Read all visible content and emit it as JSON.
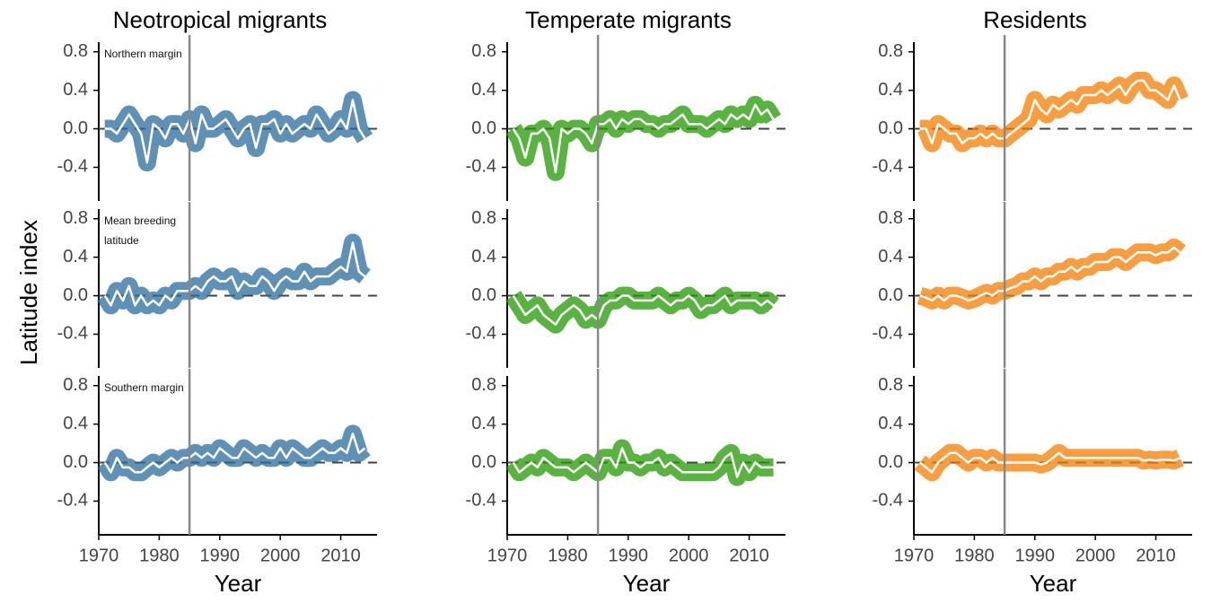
{
  "ylabel": "Latitude index",
  "chart_data": [
    {
      "type": "line",
      "title": "Neotropical migrants",
      "annotation": "Northern margin",
      "x": [
        1971,
        1972,
        1973,
        1974,
        1975,
        1976,
        1977,
        1978,
        1979,
        1980,
        1981,
        1982,
        1983,
        1984,
        1985,
        1986,
        1987,
        1988,
        1989,
        1990,
        1991,
        1992,
        1993,
        1994,
        1995,
        1996,
        1997,
        1998,
        1999,
        2000,
        2001,
        2002,
        2003,
        2004,
        2005,
        2006,
        2007,
        2008,
        2009,
        2010,
        2011,
        2012,
        2013,
        2014
      ],
      "series": [
        {
          "color": "#2a6b9c",
          "values": [
            0.0,
            0.0,
            -0.05,
            0.05,
            0.15,
            0.05,
            -0.05,
            -0.35,
            0.05,
            0.0,
            -0.1,
            0.05,
            0.05,
            -0.05,
            0.1,
            -0.15,
            0.15,
            0.0,
            0.0,
            0.05,
            0.1,
            0.0,
            -0.1,
            0.0,
            0.05,
            -0.2,
            0.05,
            0.05,
            0.1,
            -0.05,
            0.05,
            -0.05,
            0.0,
            0.05,
            0.0,
            0.15,
            0.05,
            -0.05,
            0.0,
            0.1,
            0.0,
            0.3,
            0.0,
            -0.1
          ]
        }
      ],
      "xlim": [
        1970,
        2016
      ],
      "ylim": [
        -0.75,
        0.9
      ],
      "yticks": [
        -0.4,
        {
          "value": 0,
          "label": "0.0"
        },
        0.4,
        0.8
      ],
      "vline": 1985,
      "hline": 0
    },
    {
      "type": "line",
      "title": "Temperate migrants",
      "x": [
        1971,
        1972,
        1973,
        1974,
        1975,
        1976,
        1977,
        1978,
        1979,
        1980,
        1981,
        1982,
        1983,
        1984,
        1985,
        1986,
        1987,
        1988,
        1989,
        1990,
        1991,
        1992,
        1993,
        1994,
        1995,
        1996,
        1997,
        1998,
        1999,
        2000,
        2001,
        2002,
        2003,
        2004,
        2005,
        2006,
        2007,
        2008,
        2009,
        2010,
        2011,
        2012,
        2013,
        2014
      ],
      "series": [
        {
          "color": "#229a00",
          "values": [
            0.0,
            -0.1,
            -0.3,
            -0.05,
            -0.05,
            0.0,
            -0.1,
            -0.45,
            0.0,
            -0.05,
            0.0,
            0.0,
            -0.05,
            -0.15,
            0.05,
            0.05,
            0.1,
            0.0,
            0.1,
            0.05,
            0.1,
            0.1,
            0.05,
            0.05,
            0.0,
            0.05,
            0.05,
            0.1,
            0.15,
            0.05,
            0.05,
            0.05,
            0.0,
            0.05,
            0.1,
            0.05,
            0.15,
            0.1,
            0.15,
            0.1,
            0.25,
            0.15,
            0.2,
            0.1
          ]
        }
      ],
      "xlim": [
        1970,
        2016
      ],
      "ylim": [
        -0.75,
        0.9
      ],
      "yticks": [
        -0.4,
        {
          "value": 0,
          "label": "0.0"
        },
        0.4,
        0.8
      ],
      "vline": 1985,
      "hline": 0
    },
    {
      "type": "line",
      "title": "Residents",
      "x": [
        1971,
        1972,
        1973,
        1974,
        1975,
        1976,
        1977,
        1978,
        1979,
        1980,
        1981,
        1982,
        1983,
        1984,
        1985,
        1986,
        1987,
        1988,
        1989,
        1990,
        1991,
        1992,
        1993,
        1994,
        1995,
        1996,
        1997,
        1998,
        1999,
        2000,
        2001,
        2002,
        2003,
        2004,
        2005,
        2006,
        2007,
        2008,
        2009,
        2010,
        2011,
        2012,
        2013,
        2014
      ],
      "series": [
        {
          "color": "#f57c00",
          "values": [
            0.0,
            0.0,
            -0.15,
            0.05,
            0.0,
            -0.05,
            -0.05,
            -0.15,
            -0.1,
            -0.1,
            -0.05,
            -0.1,
            -0.05,
            -0.1,
            -0.1,
            -0.05,
            0.0,
            0.05,
            0.1,
            0.3,
            0.2,
            0.15,
            0.25,
            0.2,
            0.25,
            0.3,
            0.25,
            0.35,
            0.35,
            0.35,
            0.4,
            0.35,
            0.4,
            0.45,
            0.35,
            0.45,
            0.5,
            0.5,
            0.4,
            0.4,
            0.35,
            0.3,
            0.45,
            0.3
          ]
        }
      ],
      "xlim": [
        1970,
        2016
      ],
      "ylim": [
        -0.75,
        0.9
      ],
      "yticks": [
        -0.4,
        {
          "value": 0,
          "label": "0.0"
        },
        0.4,
        0.8
      ],
      "vline": 1985,
      "hline": 0
    },
    {
      "type": "line",
      "annotation": "Mean breeding latitude",
      "x": [
        1971,
        1972,
        1973,
        1974,
        1975,
        1976,
        1977,
        1978,
        1979,
        1980,
        1981,
        1982,
        1983,
        1984,
        1985,
        1986,
        1987,
        1988,
        1989,
        1990,
        1991,
        1992,
        1993,
        1994,
        1995,
        1996,
        1997,
        1998,
        1999,
        2000,
        2001,
        2002,
        2003,
        2004,
        2005,
        2006,
        2007,
        2008,
        2009,
        2010,
        2011,
        2012,
        2013,
        2014
      ],
      "series": [
        {
          "color": "#2a6b9c",
          "values": [
            0.0,
            -0.1,
            0.05,
            -0.05,
            0.1,
            -0.1,
            0.0,
            -0.1,
            -0.05,
            -0.1,
            0.0,
            -0.05,
            0.05,
            0.05,
            0.05,
            0.1,
            0.05,
            0.15,
            0.2,
            0.15,
            0.15,
            0.2,
            0.05,
            0.15,
            0.1,
            0.1,
            0.2,
            0.15,
            0.05,
            0.15,
            0.2,
            0.15,
            0.15,
            0.25,
            0.15,
            0.2,
            0.2,
            0.2,
            0.25,
            0.3,
            0.25,
            0.55,
            0.25,
            0.2
          ]
        }
      ],
      "xlim": [
        1970,
        2016
      ],
      "ylim": [
        -0.75,
        0.9
      ],
      "yticks": [
        -0.4,
        {
          "value": 0,
          "label": "0.0"
        },
        0.4,
        0.8
      ],
      "vline": 1985,
      "hline": 0
    },
    {
      "type": "line",
      "x": [
        1971,
        1972,
        1973,
        1974,
        1975,
        1976,
        1977,
        1978,
        1979,
        1980,
        1981,
        1982,
        1983,
        1984,
        1985,
        1986,
        1987,
        1988,
        1989,
        1990,
        1991,
        1992,
        1993,
        1994,
        1995,
        1996,
        1997,
        1998,
        1999,
        2000,
        2001,
        2002,
        2003,
        2004,
        2005,
        2006,
        2007,
        2008,
        2009,
        2010,
        2011,
        2012,
        2013,
        2014
      ],
      "series": [
        {
          "color": "#229a00",
          "values": [
            0.0,
            -0.1,
            -0.2,
            -0.15,
            -0.1,
            -0.2,
            -0.25,
            -0.3,
            -0.2,
            -0.15,
            -0.1,
            -0.15,
            -0.25,
            -0.2,
            -0.25,
            -0.1,
            -0.05,
            -0.05,
            0.0,
            0.0,
            -0.05,
            -0.05,
            -0.05,
            -0.05,
            0.0,
            -0.05,
            -0.1,
            -0.05,
            -0.05,
            0.0,
            -0.05,
            -0.15,
            -0.1,
            -0.1,
            -0.05,
            0.0,
            -0.1,
            -0.05,
            -0.05,
            -0.05,
            -0.05,
            -0.1,
            -0.05,
            -0.1
          ]
        }
      ],
      "xlim": [
        1970,
        2016
      ],
      "ylim": [
        -0.75,
        0.9
      ],
      "yticks": [
        -0.4,
        {
          "value": 0,
          "label": "0.0"
        },
        0.4,
        0.8
      ],
      "vline": 1985,
      "hline": 0
    },
    {
      "type": "line",
      "x": [
        1971,
        1972,
        1973,
        1974,
        1975,
        1976,
        1977,
        1978,
        1979,
        1980,
        1981,
        1982,
        1983,
        1984,
        1985,
        1986,
        1987,
        1988,
        1989,
        1990,
        1991,
        1992,
        1993,
        1994,
        1995,
        1996,
        1997,
        1998,
        1999,
        2000,
        2001,
        2002,
        2003,
        2004,
        2005,
        2006,
        2007,
        2008,
        2009,
        2010,
        2011,
        2012,
        2013,
        2014
      ],
      "series": [
        {
          "color": "#f57c00",
          "values": [
            0.0,
            -0.02,
            -0.05,
            0.0,
            -0.05,
            0.0,
            0.0,
            -0.02,
            -0.05,
            -0.03,
            0.0,
            0.03,
            0.0,
            0.05,
            0.05,
            0.08,
            0.1,
            0.15,
            0.15,
            0.2,
            0.15,
            0.2,
            0.2,
            0.25,
            0.25,
            0.3,
            0.25,
            0.3,
            0.3,
            0.35,
            0.35,
            0.35,
            0.4,
            0.4,
            0.35,
            0.4,
            0.45,
            0.45,
            0.45,
            0.42,
            0.45,
            0.45,
            0.5,
            0.45
          ]
        }
      ],
      "xlim": [
        1970,
        2016
      ],
      "ylim": [
        -0.75,
        0.9
      ],
      "yticks": [
        -0.4,
        {
          "value": 0,
          "label": "0.0"
        },
        0.4,
        0.8
      ],
      "vline": 1985,
      "hline": 0
    },
    {
      "type": "line",
      "annotation": "Southern margin",
      "xlabel": "Year",
      "x": [
        1971,
        1972,
        1973,
        1974,
        1975,
        1976,
        1977,
        1978,
        1979,
        1980,
        1981,
        1982,
        1983,
        1984,
        1985,
        1986,
        1987,
        1988,
        1989,
        1990,
        1991,
        1992,
        1993,
        1994,
        1995,
        1996,
        1997,
        1998,
        1999,
        2000,
        2001,
        2002,
        2003,
        2004,
        2005,
        2006,
        2007,
        2008,
        2009,
        2010,
        2011,
        2012,
        2013,
        2014
      ],
      "series": [
        {
          "color": "#2a6b9c",
          "values": [
            0.0,
            -0.1,
            0.05,
            -0.05,
            -0.05,
            -0.1,
            -0.1,
            -0.05,
            0.0,
            -0.05,
            0.0,
            0.05,
            0.0,
            0.05,
            0.05,
            0.1,
            0.05,
            0.1,
            0.05,
            0.15,
            0.1,
            0.05,
            0.05,
            0.15,
            0.1,
            0.05,
            0.1,
            0.05,
            0.05,
            0.15,
            0.05,
            0.15,
            0.1,
            0.05,
            0.05,
            0.1,
            0.15,
            0.1,
            0.1,
            0.15,
            0.1,
            0.3,
            0.1,
            0.15
          ]
        }
      ],
      "xlim": [
        1970,
        2016
      ],
      "xticks": [
        1970,
        1980,
        1990,
        2000,
        2010
      ],
      "ylim": [
        -0.75,
        0.9
      ],
      "yticks": [
        -0.4,
        {
          "value": 0,
          "label": "0.0"
        },
        0.4,
        0.8
      ],
      "vline": 1985,
      "hline": 0
    },
    {
      "type": "line",
      "xlabel": "Year",
      "x": [
        1971,
        1972,
        1973,
        1974,
        1975,
        1976,
        1977,
        1978,
        1979,
        1980,
        1981,
        1982,
        1983,
        1984,
        1985,
        1986,
        1987,
        1988,
        1989,
        1990,
        1991,
        1992,
        1993,
        1994,
        1995,
        1996,
        1997,
        1998,
        1999,
        2000,
        2001,
        2002,
        2003,
        2004,
        2005,
        2006,
        2007,
        2008,
        2009,
        2010,
        2011,
        2012,
        2013,
        2014
      ],
      "series": [
        {
          "color": "#229a00",
          "values": [
            0.0,
            -0.1,
            -0.05,
            0.0,
            -0.05,
            0.05,
            0.0,
            -0.05,
            -0.05,
            -0.05,
            -0.1,
            -0.05,
            0.0,
            -0.05,
            -0.1,
            0.05,
            0.05,
            -0.05,
            0.15,
            0.0,
            0.0,
            -0.05,
            0.0,
            0.0,
            0.05,
            -0.05,
            0.0,
            -0.05,
            -0.1,
            -0.1,
            -0.1,
            -0.1,
            -0.1,
            -0.1,
            -0.05,
            0.05,
            0.1,
            -0.15,
            0.0,
            -0.1,
            0.0,
            -0.05,
            -0.05,
            -0.05
          ]
        }
      ],
      "xlim": [
        1970,
        2016
      ],
      "xticks": [
        1970,
        1980,
        1990,
        2000,
        2010
      ],
      "ylim": [
        -0.75,
        0.9
      ],
      "yticks": [
        -0.4,
        {
          "value": 0,
          "label": "0.0"
        },
        0.4,
        0.8
      ],
      "vline": 1985,
      "hline": 0
    },
    {
      "type": "line",
      "xlabel": "Year",
      "x": [
        1971,
        1972,
        1973,
        1974,
        1975,
        1976,
        1977,
        1978,
        1979,
        1980,
        1981,
        1982,
        1983,
        1984,
        1985,
        1986,
        1987,
        1988,
        1989,
        1990,
        1991,
        1992,
        1993,
        1994,
        1995,
        1996,
        1997,
        1998,
        1999,
        2000,
        2001,
        2002,
        2003,
        2004,
        2005,
        2006,
        2007,
        2008,
        2009,
        2010,
        2011,
        2012,
        2013,
        2014
      ],
      "series": [
        {
          "color": "#f57c00",
          "values": [
            0.0,
            -0.05,
            -0.1,
            0.0,
            0.05,
            0.1,
            0.1,
            0.05,
            0.0,
            0.05,
            0.05,
            0.0,
            0.05,
            0.0,
            0.0,
            0.0,
            0.0,
            0.0,
            0.0,
            0.0,
            -0.02,
            0.0,
            0.05,
            0.1,
            0.05,
            0.05,
            0.05,
            0.05,
            0.05,
            0.05,
            0.05,
            0.05,
            0.05,
            0.05,
            0.05,
            0.05,
            0.05,
            0.02,
            0.03,
            0.02,
            0.03,
            0.03,
            0.02,
            0.05
          ]
        }
      ],
      "xlim": [
        1970,
        2016
      ],
      "xticks": [
        1970,
        1980,
        1990,
        2000,
        2010
      ],
      "ylim": [
        -0.75,
        0.9
      ],
      "yticks": [
        -0.4,
        {
          "value": 0,
          "label": "0.0"
        },
        0.4,
        0.8
      ],
      "vline": 1985,
      "hline": 0
    }
  ]
}
